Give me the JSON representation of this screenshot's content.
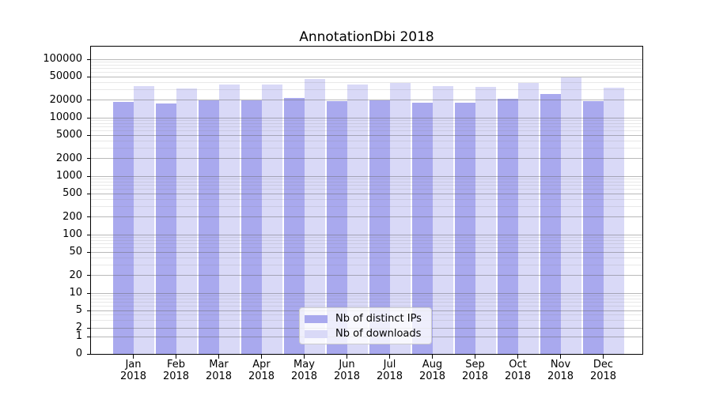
{
  "title": "AnnotationDbi 2018",
  "chart_data": {
    "type": "bar",
    "title": "AnnotationDbi 2018",
    "xlabel": "",
    "ylabel": "",
    "categories": [
      "Jan 2018",
      "Feb 2018",
      "Mar 2018",
      "Apr 2018",
      "May 2018",
      "Jun 2018",
      "Jul 2018",
      "Aug 2018",
      "Sep 2018",
      "Oct 2018",
      "Nov 2018",
      "Dec 2018"
    ],
    "series": [
      {
        "name": "Nb of distinct IPs",
        "color": "#a9a9ee",
        "values": [
          18400,
          17600,
          19600,
          19600,
          21800,
          19100,
          20000,
          18300,
          17900,
          21200,
          25200,
          19200
        ]
      },
      {
        "name": "Nb of downloads",
        "color": "#d9d9f7",
        "values": [
          34300,
          31900,
          37300,
          36800,
          46300,
          36900,
          38900,
          34300,
          34100,
          39700,
          48200,
          33100
        ]
      }
    ],
    "y_scale": "symlog",
    "y_ticks": [
      100000,
      50000,
      20000,
      10000,
      5000,
      2000,
      1000,
      500,
      200,
      100,
      50,
      20,
      10,
      5,
      2,
      1,
      0
    ],
    "ylim": [
      0,
      164000
    ],
    "grid": true,
    "legend_position": "lower center inside plot"
  },
  "colors": {
    "distinct_ips_bar": "#a9a9ee",
    "downloads_bar": "#d9d9f7",
    "major_grid": "#b0b0b0",
    "minor_grid": "#e3e3e3",
    "axis": "#000000",
    "background": "#ffffff"
  }
}
